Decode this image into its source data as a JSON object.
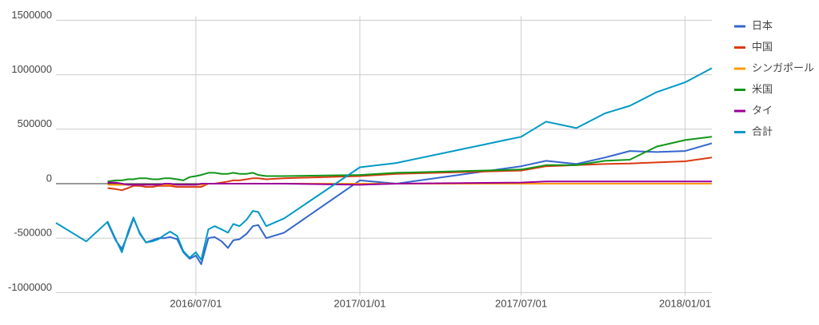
{
  "chart_data": {
    "type": "line",
    "x": [
      "2016/01/26",
      "2016/02/29",
      "2016/03/24",
      "2016/04/02",
      "2016/04/09",
      "2016/04/16",
      "2016/04/22",
      "2016/04/29",
      "2016/05/06",
      "2016/05/13",
      "2016/05/20",
      "2016/05/27",
      "2016/06/02",
      "2016/06/10",
      "2016/06/17",
      "2016/06/24",
      "2016/07/01",
      "2016/07/07",
      "2016/07/15",
      "2016/07/22",
      "2016/07/30",
      "2016/08/06",
      "2016/08/12",
      "2016/08/19",
      "2016/08/27",
      "2016/09/03",
      "2016/09/09",
      "2016/09/18",
      "2016/10/08",
      "2017/01/01",
      "2017/02/11",
      "2017/07/01",
      "2017/07/29",
      "2017/09/01",
      "2017/10/03",
      "2017/10/31",
      "2017/11/30",
      "2018/01/01",
      "2018/01/31"
    ],
    "series": [
      {
        "name": "日本",
        "color": "#3366cc",
        "values": [
          null,
          null,
          -360000,
          -520000,
          -600000,
          -460000,
          -320000,
          -450000,
          -540000,
          -520000,
          -500000,
          -500000,
          -490000,
          -510000,
          -630000,
          -690000,
          -660000,
          -740000,
          -500000,
          -490000,
          -530000,
          -590000,
          -520000,
          -510000,
          -460000,
          -390000,
          -380000,
          -500000,
          -450000,
          30000,
          0,
          160000,
          210000,
          180000,
          240000,
          300000,
          290000,
          300000,
          370000
        ]
      },
      {
        "name": "中国",
        "color": "#dc3912",
        "values": [
          null,
          null,
          -40000,
          -50000,
          -60000,
          -40000,
          -20000,
          -20000,
          -30000,
          -30000,
          -20000,
          -20000,
          -20000,
          -30000,
          -30000,
          -30000,
          -30000,
          -30000,
          0,
          0,
          10000,
          20000,
          30000,
          30000,
          40000,
          50000,
          50000,
          40000,
          50000,
          70000,
          90000,
          120000,
          160000,
          170000,
          180000,
          185000,
          195000,
          205000,
          240000
        ]
      },
      {
        "name": "シンガポール",
        "color": "#ff9900",
        "values": [
          null,
          null,
          -10000,
          -10000,
          -10000,
          -10000,
          -10000,
          -10000,
          -10000,
          -10000,
          -10000,
          -10000,
          -10000,
          -10000,
          -10000,
          -10000,
          -10000,
          -10000,
          0,
          0,
          0,
          0,
          0,
          0,
          0,
          0,
          0,
          0,
          0,
          0,
          0,
          0,
          0,
          0,
          0,
          0,
          0,
          0,
          0
        ]
      },
      {
        "name": "米国",
        "color": "#109618",
        "values": [
          null,
          null,
          20000,
          30000,
          30000,
          40000,
          40000,
          50000,
          50000,
          40000,
          40000,
          50000,
          50000,
          40000,
          30000,
          60000,
          70000,
          80000,
          100000,
          100000,
          90000,
          90000,
          100000,
          90000,
          90000,
          100000,
          80000,
          70000,
          70000,
          80000,
          100000,
          130000,
          170000,
          170000,
          210000,
          220000,
          340000,
          400000,
          430000
        ]
      },
      {
        "name": "タイ",
        "color": "#990099",
        "values": [
          null,
          null,
          10000,
          10000,
          0,
          -10000,
          -10000,
          -10000,
          -10000,
          -10000,
          -10000,
          0,
          0,
          -10000,
          -10000,
          -10000,
          -10000,
          0,
          0,
          0,
          0,
          0,
          0,
          0,
          0,
          0,
          0,
          0,
          0,
          -10000,
          0,
          10000,
          20000,
          20000,
          20000,
          20000,
          20000,
          20000,
          20000
        ]
      },
      {
        "name": "合計",
        "color": "#0099c6",
        "values": [
          -360000,
          -530000,
          -350000,
          -510000,
          -630000,
          -440000,
          -310000,
          -460000,
          -540000,
          -530000,
          -510000,
          -470000,
          -440000,
          -480000,
          -620000,
          -680000,
          -630000,
          -700000,
          -420000,
          -390000,
          -420000,
          -450000,
          -370000,
          -390000,
          -330000,
          -250000,
          -260000,
          -390000,
          -320000,
          150000,
          190000,
          430000,
          570000,
          510000,
          645000,
          715000,
          840000,
          930000,
          1060000
        ]
      }
    ],
    "xlim": [
      "2016/01/26",
      "2018/01/31"
    ],
    "xticks": [
      "2016/07/01",
      "2017/01/01",
      "2017/07/01",
      "2018/01/01"
    ],
    "ylim": [
      -1000000,
      1500000
    ],
    "yticks": [
      -1000000,
      -500000,
      0,
      500000,
      1000000,
      1500000
    ],
    "grid": true,
    "legend": "right"
  }
}
